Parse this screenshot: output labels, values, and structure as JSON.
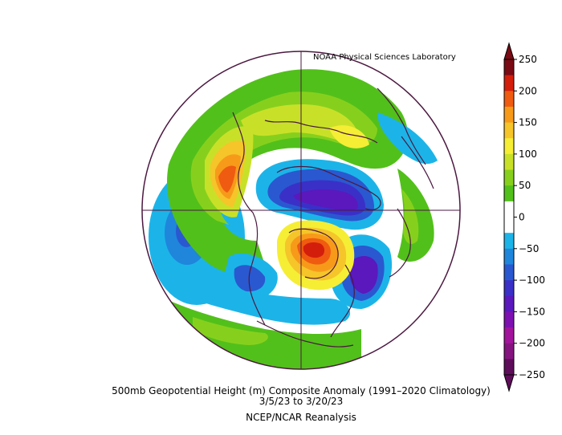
{
  "credit": "NOAA Physical Sciences Laboratory",
  "caption": {
    "title": "500mb Geopotential Height (m) Composite Anomaly (1991–2020 Climatology)",
    "dates": "3/5/23   to 3/20/23",
    "source": "NCEP/NCAR Reanalysis"
  },
  "colorbar": {
    "labels": [
      "250",
      "200",
      "150",
      "100",
      "50",
      "0",
      "−50",
      "−100",
      "−150",
      "−200",
      "−250"
    ],
    "colors": [
      "#7a0a14",
      "#d41e0c",
      "#ef5b10",
      "#f79a1a",
      "#f5c52a",
      "#f5ee35",
      "#c8e128",
      "#86d01d",
      "#52c01a",
      "#ffffff",
      "#ffffff",
      "#1cb4e8",
      "#1f86dc",
      "#2a58d0",
      "#3a30c8",
      "#5a18bd",
      "#7e10b2",
      "#a3149d",
      "#861480",
      "#5e0d5a"
    ]
  },
  "map": {
    "projection": "north polar stereographic",
    "coastline_color": "#4b1840",
    "features": [
      {
        "name": "pacific-ridge",
        "anomaly": 225
      },
      {
        "name": "eurasia-high-ring",
        "anomaly": 75
      },
      {
        "name": "greenland-arctic-low",
        "anomaly": -175
      },
      {
        "name": "west-russia-high",
        "anomaly": 250
      },
      {
        "name": "western-europe-low",
        "anomaly": -175
      },
      {
        "name": "north-atlantic-low",
        "anomaly": -150
      },
      {
        "name": "southeast-asia-low",
        "anomaly": -125
      },
      {
        "name": "north-pacific-low",
        "anomaly": -125
      },
      {
        "name": "canada-high",
        "anomaly": 75
      }
    ]
  }
}
